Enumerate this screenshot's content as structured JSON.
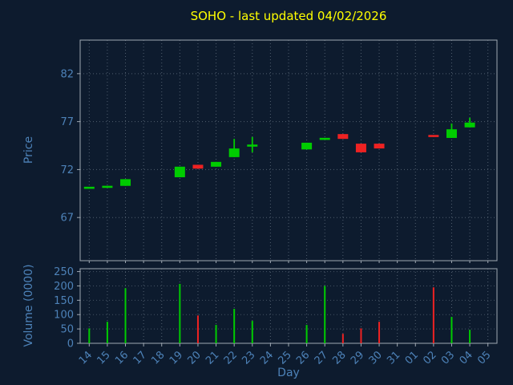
{
  "title": "SOHO - last updated 04/02/2026",
  "colors": {
    "background": "#0d1b2e",
    "title": "#ffff00",
    "axis_label": "#4d82b8",
    "tick_label": "#4d82b8",
    "grid": "#8895a3",
    "spine": "#9fa8b2",
    "up": "#00cc00",
    "down": "#ee2222"
  },
  "price_axis": {
    "label": "Price",
    "ticks": [
      67,
      72,
      77,
      82
    ],
    "ylim": [
      62.5,
      85.5
    ]
  },
  "volume_axis": {
    "label": "Volume (0000)",
    "ticks": [
      0,
      50,
      100,
      150,
      200,
      250
    ],
    "ylim": [
      0,
      260
    ]
  },
  "x_axis": {
    "label": "Day"
  },
  "chart_data": {
    "type": "candlestick+volume-bar",
    "title": "SOHO - last updated 04/02/2026",
    "xlabel": "Day",
    "ylabel_price": "Price",
    "ylabel_volume": "Volume (0000)",
    "grid": "dotted",
    "categories": [
      "14",
      "15",
      "16",
      "17",
      "18",
      "19",
      "20",
      "21",
      "22",
      "23",
      "24",
      "25",
      "26",
      "27",
      "28",
      "29",
      "30",
      "31",
      "01",
      "02",
      "03",
      "04",
      "05"
    ],
    "candles": [
      {
        "open": 70.1,
        "high": 70.1,
        "low": 70.1,
        "close": 70.1,
        "dir": "up"
      },
      {
        "open": 70.2,
        "high": 70.2,
        "low": 70.2,
        "close": 70.2,
        "dir": "up"
      },
      {
        "open": 70.3,
        "high": 71.0,
        "low": 70.3,
        "close": 71.0,
        "dir": "up"
      },
      null,
      null,
      {
        "open": 71.2,
        "high": 72.3,
        "low": 71.2,
        "close": 72.3,
        "dir": "up"
      },
      {
        "open": 72.5,
        "high": 72.5,
        "low": 72.1,
        "close": 72.1,
        "dir": "down"
      },
      {
        "open": 72.3,
        "high": 72.8,
        "low": 72.3,
        "close": 72.8,
        "dir": "up"
      },
      {
        "open": 73.3,
        "high": 75.2,
        "low": 73.3,
        "close": 74.2,
        "dir": "up"
      },
      {
        "open": 74.5,
        "high": 75.4,
        "low": 73.8,
        "close": 74.5,
        "dir": "up"
      },
      null,
      null,
      {
        "open": 74.1,
        "high": 74.8,
        "low": 74.1,
        "close": 74.8,
        "dir": "up"
      },
      {
        "open": 75.2,
        "high": 75.2,
        "low": 75.2,
        "close": 75.2,
        "dir": "up"
      },
      {
        "open": 75.7,
        "high": 75.7,
        "low": 75.2,
        "close": 75.2,
        "dir": "down"
      },
      {
        "open": 74.7,
        "high": 74.7,
        "low": 73.8,
        "close": 73.8,
        "dir": "down"
      },
      {
        "open": 74.7,
        "high": 74.7,
        "low": 74.2,
        "close": 74.2,
        "dir": "down"
      },
      null,
      null,
      {
        "open": 75.5,
        "high": 75.5,
        "low": 75.5,
        "close": 75.5,
        "dir": "down"
      },
      {
        "open": 75.3,
        "high": 76.8,
        "low": 75.3,
        "close": 76.2,
        "dir": "up"
      },
      {
        "open": 76.4,
        "high": 77.4,
        "low": 76.4,
        "close": 76.9,
        "dir": "up"
      },
      null
    ],
    "volumes": [
      52,
      75,
      192,
      null,
      null,
      207,
      97,
      64,
      120,
      78,
      null,
      null,
      64,
      200,
      33,
      52,
      75,
      null,
      null,
      195,
      92,
      47,
      null
    ]
  }
}
